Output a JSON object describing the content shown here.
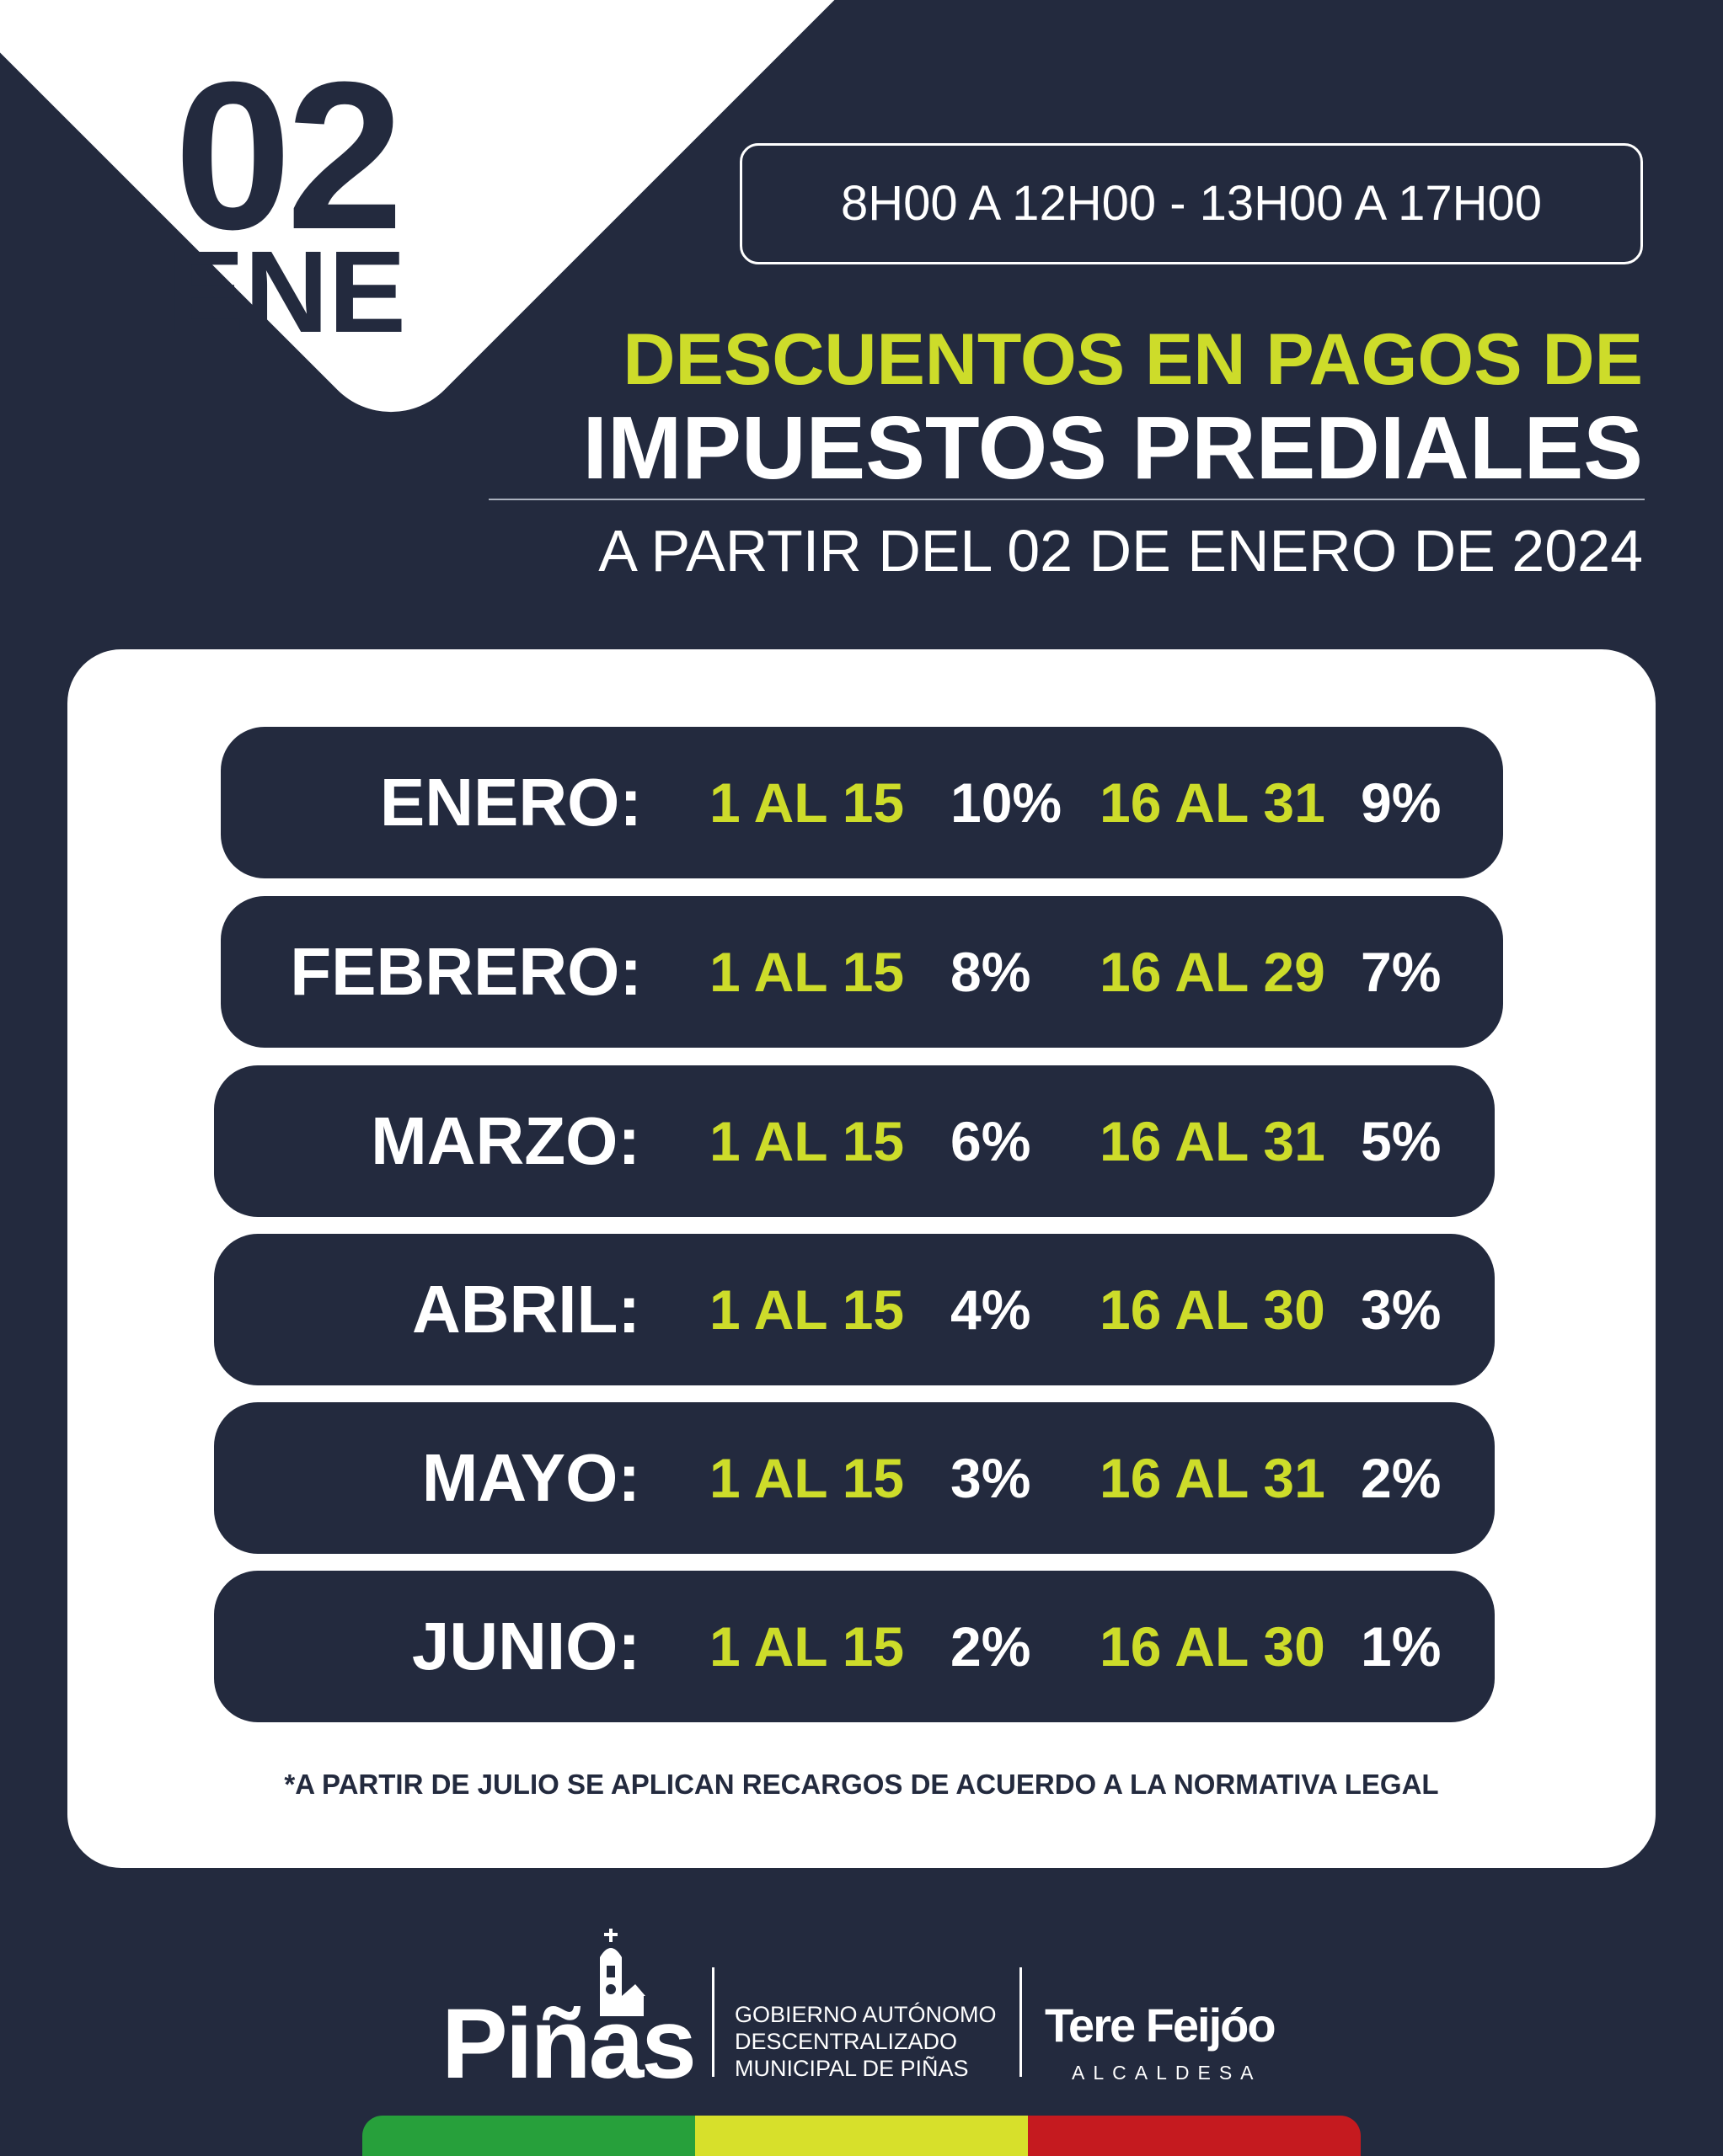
{
  "date": {
    "day": "02",
    "month": "ENE"
  },
  "hours": "8H00 A 12H00 - 13H00 A 17H00",
  "title": {
    "line1": "DESCUENTOS EN PAGOS DE",
    "line2": "IMPUESTOS PREDIALES",
    "subtitle": "A PARTIR DEL 02 DE ENERO DE 2024"
  },
  "schedule": [
    {
      "month": "ENERO:",
      "range1": "1 AL 15",
      "pct1": "10%",
      "range2": "16 AL 31",
      "pct2": "9%"
    },
    {
      "month": "FEBRERO:",
      "range1": "1 AL 15",
      "pct1": "8%",
      "range2": "16 AL 29",
      "pct2": "7%"
    },
    {
      "month": "MARZO:",
      "range1": "1 AL 15",
      "pct1": "6%",
      "range2": "16 AL 31",
      "pct2": "5%"
    },
    {
      "month": "ABRIL:",
      "range1": "1 AL 15",
      "pct1": "4%",
      "range2": "16 AL 30",
      "pct2": "3%"
    },
    {
      "month": "MAYO:",
      "range1": "1 AL 15",
      "pct1": "3%",
      "range2": "16 AL 31",
      "pct2": "2%"
    },
    {
      "month": "JUNIO:",
      "range1": "1 AL 15",
      "pct1": "2%",
      "range2": "16 AL 30",
      "pct2": "1%"
    }
  ],
  "footnote": "*A PARTIR DE JULIO SE APLICAN RECARGOS DE ACUERDO A LA NORMATIVA LEGAL",
  "footer": {
    "logo_text": "Piñas",
    "gov_lines": [
      "GOBIERNO AUTÓNOMO",
      "DESCENTRALIZADO",
      "MUNICIPAL DE PIÑAS"
    ],
    "mayor_name": "Tere Feijóo",
    "mayor_role": "ALCALDESA"
  },
  "colors": {
    "background": "#232a3e",
    "accent": "#cddc2a",
    "flag": [
      "#27a03b",
      "#d7e02b",
      "#c51a1f"
    ]
  }
}
